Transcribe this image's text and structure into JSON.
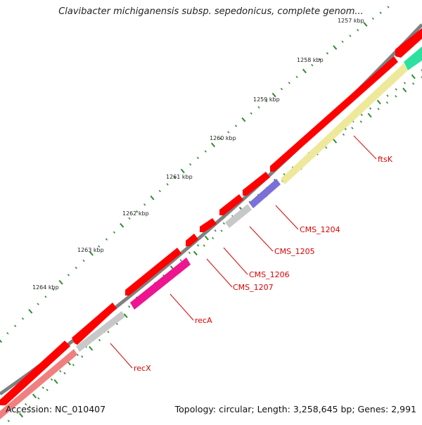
{
  "title": "Clavibacter michiganensis subsp. sepedonicus, complete genom...",
  "footer": {
    "accession": "Accession: NC_010407",
    "summary": "Topology: circular; Length: 3,258,645 bp; Genes: 2,991"
  },
  "ticks": {
    "unit": "kbp",
    "labels": [
      "1257 kbp",
      "1258 kbp",
      "1259 kbp",
      "1260 kbp",
      "1261 kbp",
      "1262 kbp",
      "1263 kbp",
      "1264 kbp"
    ]
  },
  "features": {
    "gene_color": "#ff0000",
    "cds_colors": {
      "ftsK": "#eee89a",
      "CMS_1204": "#7a70d8",
      "CMS_1205": "#c8c8c8",
      "recA": "#ee1590",
      "recX": "#c8c8c8",
      "teal_cds": "#2ee0a0",
      "pink_cds": "#f08080"
    },
    "labels": [
      "ftsK",
      "CMS_1204",
      "CMS_1205",
      "CMS_1206",
      "CMS_1207",
      "recA",
      "recX"
    ]
  },
  "colors": {
    "backbone": "#808080",
    "tick": "#2e8b2e",
    "label": "#dd0000"
  }
}
